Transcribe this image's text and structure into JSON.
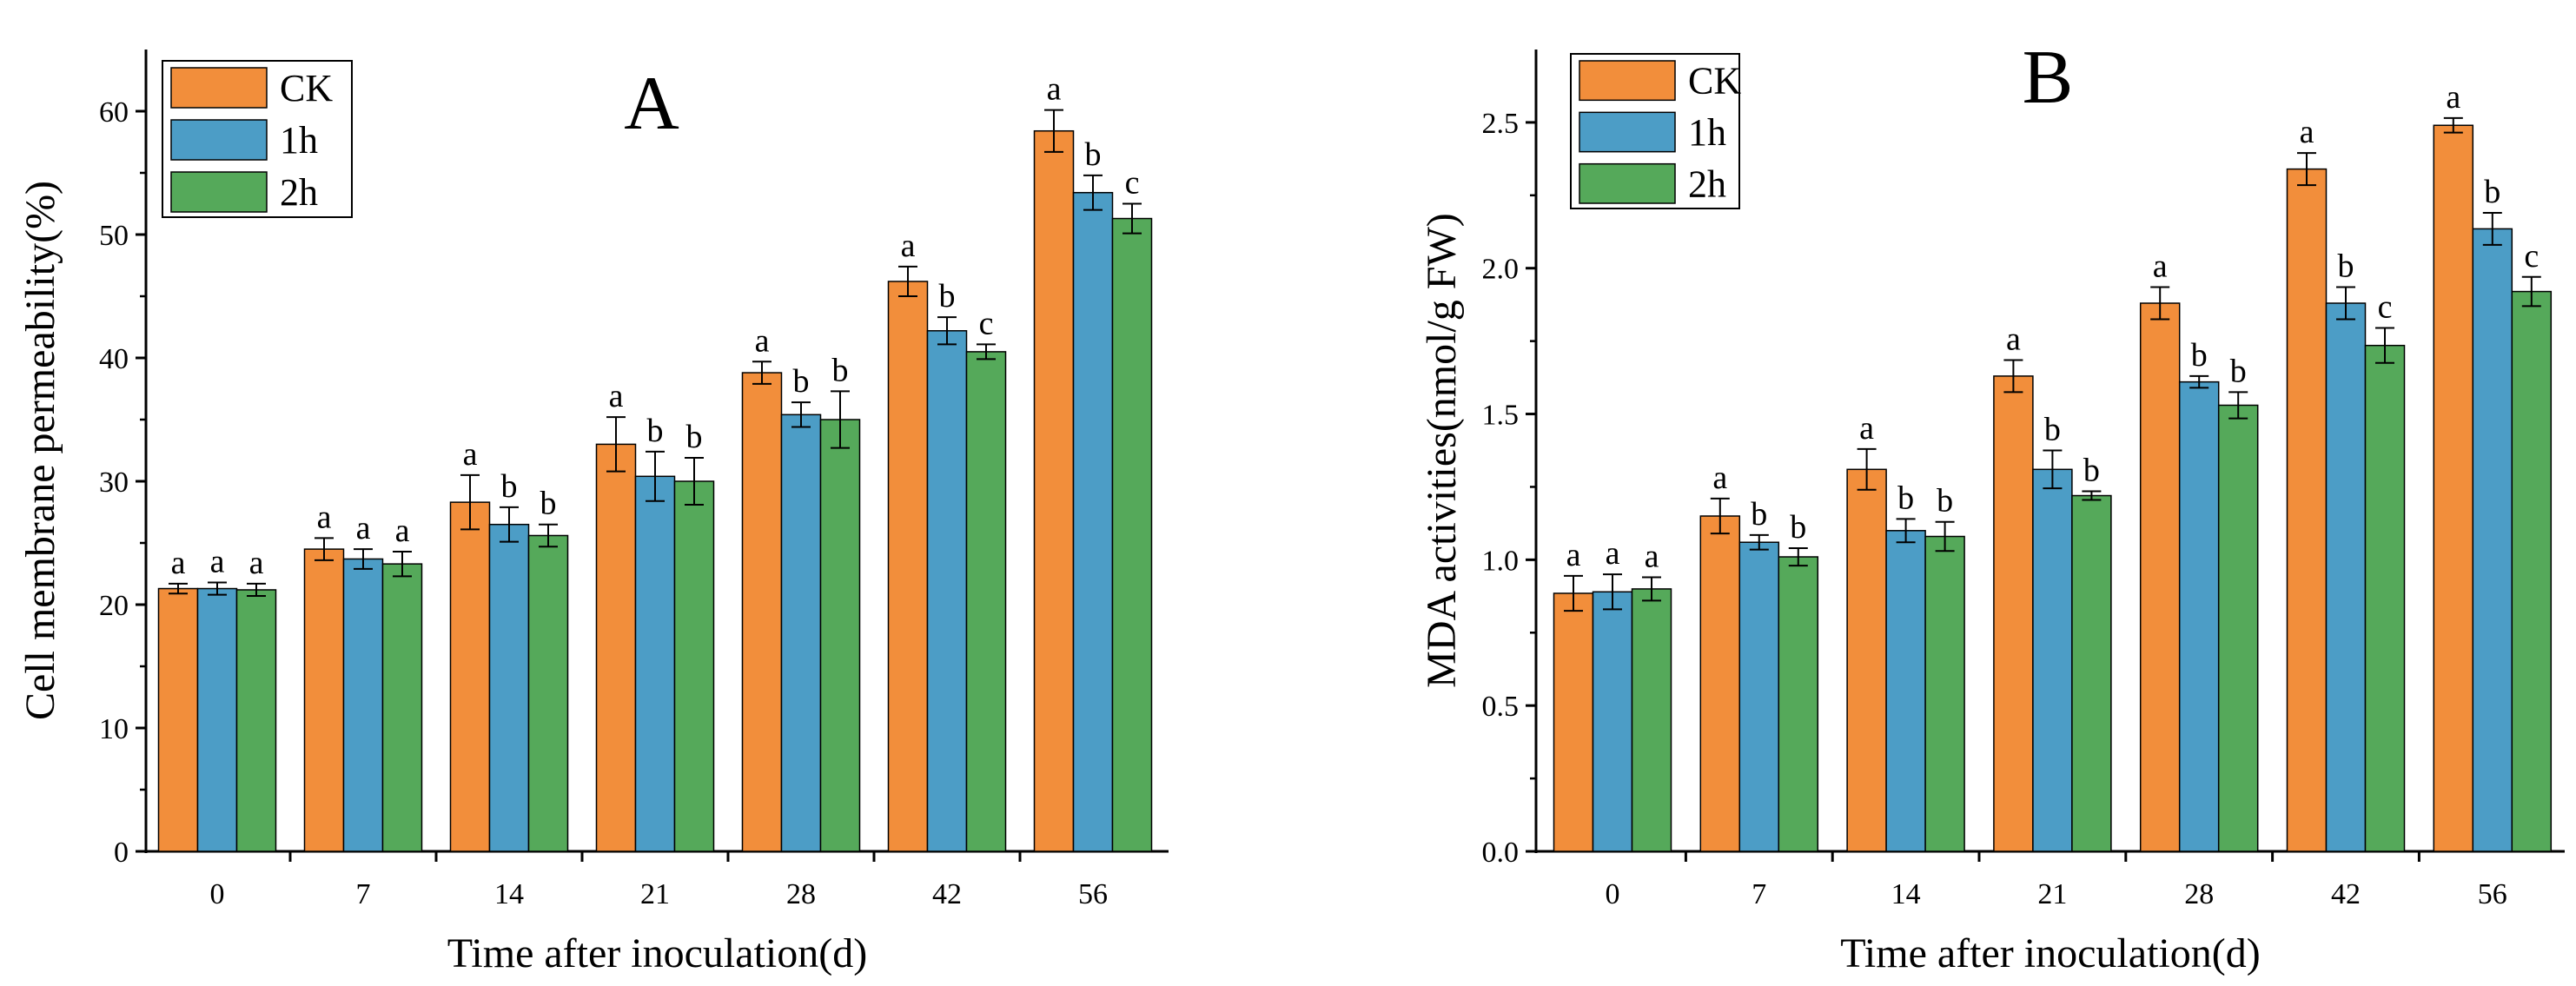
{
  "colors": {
    "CK": "#F28E3B",
    "1h": "#4C9DC6",
    "2h": "#55A95A",
    "axis": "#000000",
    "error": "#000000"
  },
  "chart_data": [
    {
      "type": "bar",
      "panel": "A",
      "title": "A",
      "xlabel": "Time after inoculation(d)",
      "ylabel": "Cell membrane permeability(%)",
      "ylim": [
        0,
        65
      ],
      "yticks": [
        "0",
        "10",
        "20",
        "30",
        "40",
        "50",
        "60"
      ],
      "categories": [
        "0",
        "7",
        "14",
        "21",
        "28",
        "42",
        "56"
      ],
      "legend": {
        "position": "top-left",
        "entries": [
          "CK",
          "1h",
          "2h"
        ]
      },
      "series": [
        {
          "name": "CK",
          "values": [
            21.3,
            24.5,
            28.3,
            33.0,
            38.8,
            46.2,
            58.4
          ],
          "errors": [
            0.4,
            0.9,
            2.2,
            2.2,
            0.9,
            1.2,
            1.7
          ],
          "labels": [
            "a",
            "a",
            "a",
            "a",
            "a",
            "a",
            "a"
          ]
        },
        {
          "name": "1h",
          "values": [
            21.3,
            23.7,
            26.5,
            30.4,
            35.4,
            42.2,
            53.4
          ],
          "errors": [
            0.5,
            0.8,
            1.4,
            2.0,
            1.0,
            1.1,
            1.4
          ],
          "labels": [
            "a",
            "a",
            "b",
            "b",
            "b",
            "b",
            "b"
          ]
        },
        {
          "name": "2h",
          "values": [
            21.2,
            23.3,
            25.6,
            30.0,
            35.0,
            40.5,
            51.3
          ],
          "errors": [
            0.5,
            1.0,
            0.9,
            1.9,
            2.3,
            0.6,
            1.2
          ],
          "labels": [
            "a",
            "a",
            "b",
            "b",
            "b",
            "c",
            "c"
          ]
        }
      ]
    },
    {
      "type": "bar",
      "panel": "B",
      "title": "B",
      "xlabel": "Time after inoculation(d)",
      "ylabel": "MDA activities(nmol/g FW)",
      "ylim": [
        0,
        2.75
      ],
      "yticks": [
        "0.0",
        "0.5",
        "1.0",
        "1.5",
        "2.0",
        "2.5"
      ],
      "categories": [
        "0",
        "7",
        "14",
        "21",
        "28",
        "42",
        "56"
      ],
      "legend": {
        "position": "top-left",
        "entries": [
          "CK",
          "1h",
          "2h"
        ]
      },
      "series": [
        {
          "name": "CK",
          "values": [
            0.885,
            1.15,
            1.31,
            1.63,
            1.88,
            2.34,
            2.49
          ],
          "errors": [
            0.06,
            0.06,
            0.07,
            0.055,
            0.055,
            0.055,
            0.025
          ],
          "labels": [
            "a",
            "a",
            "a",
            "a",
            "a",
            "a",
            "a"
          ]
        },
        {
          "name": "1h",
          "values": [
            0.89,
            1.06,
            1.1,
            1.31,
            1.61,
            1.88,
            2.135
          ],
          "errors": [
            0.06,
            0.025,
            0.04,
            0.065,
            0.02,
            0.055,
            0.055
          ],
          "labels": [
            "a",
            "b",
            "b",
            "b",
            "b",
            "b",
            "b"
          ]
        },
        {
          "name": "2h",
          "values": [
            0.9,
            1.01,
            1.08,
            1.22,
            1.53,
            1.735,
            1.92
          ],
          "errors": [
            0.04,
            0.03,
            0.05,
            0.015,
            0.045,
            0.06,
            0.05
          ],
          "labels": [
            "a",
            "b",
            "b",
            "b",
            "b",
            "c",
            "c"
          ]
        }
      ]
    }
  ]
}
